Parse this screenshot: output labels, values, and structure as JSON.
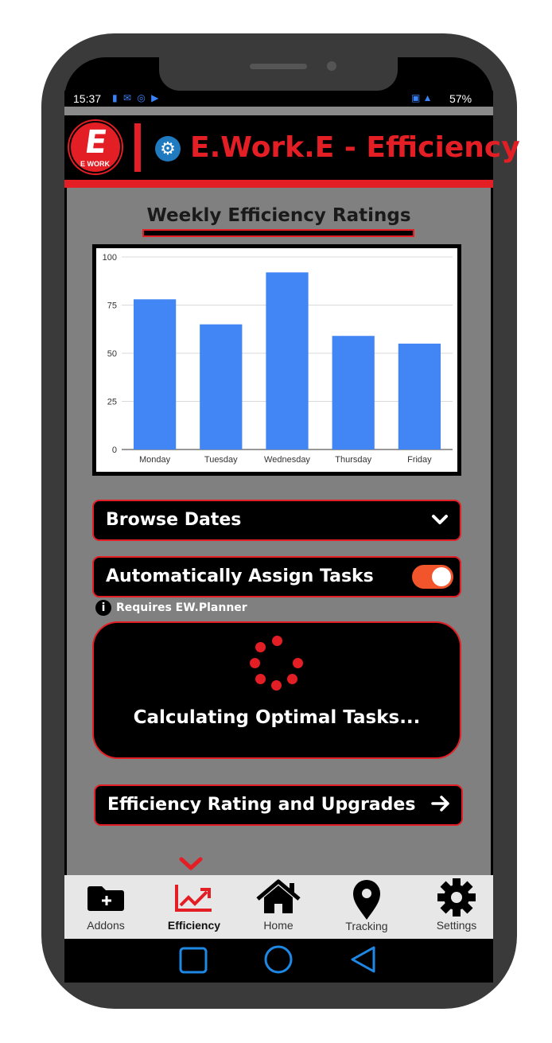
{
  "status_bar": {
    "time": "15:37",
    "left_icons": "▮ ✉ ◎ ▶",
    "right_icons": "▣ ▲",
    "battery": "57%"
  },
  "header": {
    "logo_letter": "E",
    "logo_text": "E WORK",
    "title": "E.Work.E - Efficiency",
    "gear_glyph": "⚙"
  },
  "chart_section": {
    "title": "Weekly Efficiency Ratings"
  },
  "chart_data": {
    "type": "bar",
    "title": "Weekly Efficiency Ratings",
    "categories": [
      "Monday",
      "Tuesday",
      "Wednesday",
      "Thursday",
      "Friday"
    ],
    "values": [
      78,
      65,
      92,
      59,
      55
    ],
    "ylim": [
      0,
      100
    ],
    "yticks": [
      0,
      25,
      50,
      75,
      100
    ],
    "bar_color": "#4285f4",
    "grid": true
  },
  "browse": {
    "label": "Browse Dates",
    "chevron": "❯"
  },
  "assign": {
    "label": "Automatically Assign Tasks",
    "toggle_on": true,
    "toggle_color": "#f2552c"
  },
  "requires": {
    "icon": "i",
    "text": "Requires EW.Planner"
  },
  "calculating": {
    "text": "Calculating Optimal Tasks..."
  },
  "upgrades": {
    "label": "Efficiency Rating and Upgrades",
    "arrow": "→"
  },
  "nav": {
    "active_indicator": "⌄",
    "items": [
      {
        "label": "Addons",
        "icon": "folder-plus-icon"
      },
      {
        "label": "Efficiency",
        "icon": "trending-up-icon",
        "active": true
      },
      {
        "label": "Home",
        "icon": "home-icon"
      },
      {
        "label": "Tracking",
        "icon": "map-pin-icon"
      },
      {
        "label": "Settings",
        "icon": "gear-icon"
      }
    ]
  },
  "colors": {
    "accent": "#e31e24",
    "background": "#808080",
    "nav_background": "#e7e7e7",
    "system_nav": "#1e88e5"
  }
}
